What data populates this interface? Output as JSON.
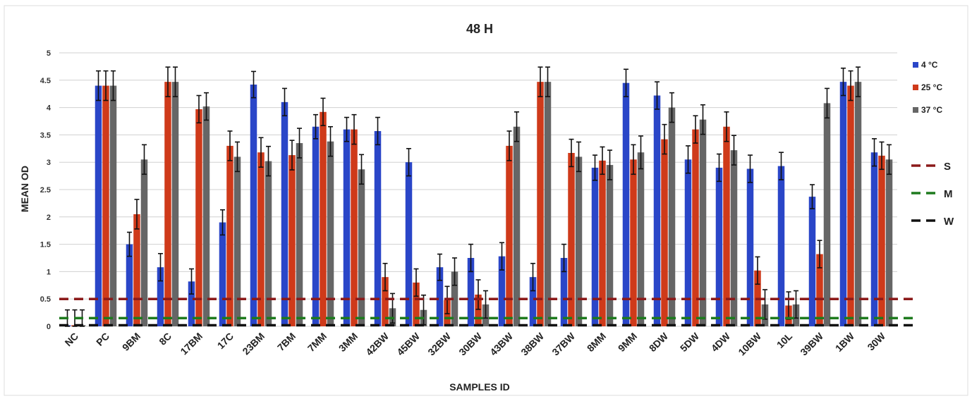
{
  "chart_data": {
    "type": "bar",
    "title": "48 H",
    "xlabel": "SAMPLES ID",
    "ylabel": "MEAN OD",
    "ylim": [
      0,
      5
    ],
    "yticks": [
      "0",
      "0.5",
      "1",
      "1.5",
      "2",
      "2.5",
      "3",
      "3.5",
      "4",
      "4.5",
      "5"
    ],
    "grid": true,
    "legend_position": "right",
    "categories": [
      "NC",
      "PC",
      "9BM",
      "8C",
      "17BM",
      "17C",
      "23BM",
      "7BM",
      "7MM",
      "3MM",
      "42BW",
      "45BW",
      "32BW",
      "30BW",
      "43BW",
      "38BW",
      "37BW",
      "8MM",
      "9MM",
      "8DW",
      "5DW",
      "4DW",
      "10BW",
      "10L",
      "39BW",
      "1BW",
      "30W"
    ],
    "series": [
      {
        "name": "4 °C",
        "color": "#2a46c8",
        "values": [
          0.02,
          4.4,
          1.5,
          1.08,
          0.82,
          1.9,
          4.42,
          4.1,
          3.65,
          3.6,
          3.57,
          3.0,
          1.08,
          1.25,
          1.28,
          0.9,
          1.25,
          2.9,
          4.45,
          4.22,
          3.05,
          2.9,
          2.88,
          2.93,
          2.37,
          4.47,
          3.18
        ],
        "errors": [
          0.28,
          0.27,
          0.22,
          0.25,
          0.23,
          0.23,
          0.24,
          0.25,
          0.22,
          0.22,
          0.25,
          0.25,
          0.24,
          0.25,
          0.25,
          0.25,
          0.25,
          0.23,
          0.25,
          0.25,
          0.25,
          0.25,
          0.25,
          0.25,
          0.22,
          0.25,
          0.25
        ]
      },
      {
        "name": "25 °C",
        "color": "#cf3a1a",
        "values": [
          0.02,
          4.4,
          2.05,
          4.47,
          3.97,
          3.3,
          3.18,
          3.13,
          3.92,
          3.6,
          0.9,
          0.8,
          0.48,
          0.58,
          3.3,
          4.47,
          3.17,
          3.03,
          3.05,
          3.42,
          3.6,
          3.65,
          1.02,
          0.38,
          1.32,
          4.4,
          3.12
        ],
        "errors": [
          0.28,
          0.27,
          0.27,
          0.27,
          0.25,
          0.27,
          0.27,
          0.27,
          0.25,
          0.27,
          0.25,
          0.25,
          0.25,
          0.27,
          0.27,
          0.27,
          0.25,
          0.25,
          0.27,
          0.27,
          0.25,
          0.27,
          0.25,
          0.25,
          0.25,
          0.27,
          0.25
        ]
      },
      {
        "name": "37 °C",
        "color": "#666666",
        "values": [
          0.02,
          4.4,
          3.05,
          4.47,
          4.02,
          3.1,
          3.02,
          3.35,
          3.38,
          2.87,
          0.33,
          0.3,
          1.0,
          0.4,
          3.65,
          4.47,
          3.1,
          2.95,
          3.18,
          4.0,
          3.78,
          3.22,
          0.4,
          0.4,
          4.08,
          4.47,
          3.05
        ],
        "errors": [
          0.28,
          0.27,
          0.27,
          0.27,
          0.25,
          0.27,
          0.27,
          0.27,
          0.27,
          0.27,
          0.27,
          0.27,
          0.25,
          0.25,
          0.27,
          0.27,
          0.27,
          0.27,
          0.3,
          0.27,
          0.27,
          0.27,
          0.27,
          0.25,
          0.27,
          0.27,
          0.27
        ]
      }
    ],
    "reference_lines": [
      {
        "label": "S",
        "value": 0.5,
        "color": "#8b1a1a"
      },
      {
        "label": "M",
        "value": 0.15,
        "color": "#1e7a1e"
      },
      {
        "label": "W",
        "value": 0.02,
        "color": "#111111"
      }
    ]
  }
}
